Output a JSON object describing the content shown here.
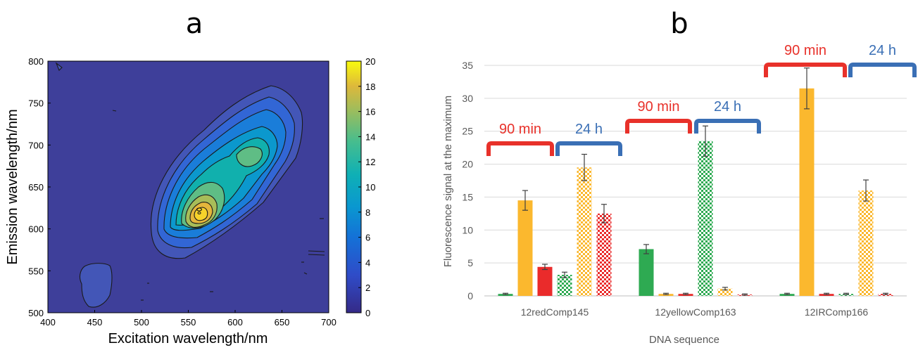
{
  "panel_a": {
    "letter": "a",
    "xlabel": "Excitation wavelength/nm",
    "ylabel": "Emission wavelength/nm",
    "xticks": [
      "400",
      "450",
      "500",
      "550",
      "600",
      "650",
      "700"
    ],
    "yticks": [
      "500",
      "550",
      "600",
      "650",
      "700",
      "750",
      "800"
    ],
    "colorbar_ticks": [
      "0",
      "2",
      "4",
      "6",
      "8",
      "10",
      "12",
      "14",
      "16",
      "18",
      "20"
    ]
  },
  "panel_b": {
    "letter": "b",
    "xlabel": "DNA sequence",
    "ylabel": "Fluorescence signal at the maximum",
    "yticks": [
      "0",
      "5",
      "10",
      "15",
      "20",
      "25",
      "30",
      "35"
    ],
    "labels": [
      {
        "text": "90 min",
        "color": "#e8312a"
      },
      {
        "text": "24 h",
        "color": "#3a6fb5"
      },
      {
        "text": "90 min",
        "color": "#e8312a"
      },
      {
        "text": "24 h",
        "color": "#3a6fb5"
      },
      {
        "text": "90 min",
        "color": "#e8312a"
      },
      {
        "text": "24 h",
        "color": "#3a6fb5"
      }
    ]
  },
  "chart_data": [
    {
      "type": "heatmap",
      "subtype": "filled-contour",
      "title": "a",
      "xlabel": "Excitation wavelength/nm",
      "ylabel": "Emission wavelength/nm",
      "xlim": [
        400,
        700
      ],
      "ylim": [
        500,
        800
      ],
      "colorbar": {
        "range": [
          0,
          20
        ],
        "ticks": [
          0,
          2,
          4,
          6,
          8,
          10,
          12,
          14,
          16,
          18,
          20
        ],
        "colormap": "parula"
      },
      "peaks": [
        {
          "x": 560,
          "y": 620,
          "value": 19
        },
        {
          "x": 610,
          "y": 680,
          "value": 13
        },
        {
          "x": 450,
          "y": 535,
          "value": 4
        }
      ]
    },
    {
      "type": "bar",
      "title": "b",
      "xlabel": "DNA sequence",
      "ylabel": "Fluorescence signal at the maximum",
      "ylim": [
        0,
        35
      ],
      "grid": true,
      "categories": [
        "12redComp145",
        "12yellowComp163",
        "12IRComp166"
      ],
      "series": [
        {
          "time": "90 min",
          "color": "#2eaa52",
          "pattern": "solid",
          "values": [
            0.3,
            7.1,
            0.3
          ],
          "errors": [
            0.1,
            0.7,
            0.1
          ]
        },
        {
          "time": "90 min",
          "color": "#fbb82e",
          "pattern": "solid",
          "values": [
            14.5,
            0.3,
            31.5
          ],
          "errors": [
            1.5,
            0.1,
            3.1
          ]
        },
        {
          "time": "90 min",
          "color": "#ea2b2b",
          "pattern": "solid",
          "values": [
            4.4,
            0.3,
            0.3
          ],
          "errors": [
            0.4,
            0.1,
            0.1
          ]
        },
        {
          "time": "24 h",
          "color": "#2eaa52",
          "pattern": "checker",
          "values": [
            3.2,
            23.5,
            0.3
          ],
          "errors": [
            0.4,
            2.3,
            0.1
          ]
        },
        {
          "time": "24 h",
          "color": "#fbb82e",
          "pattern": "checker",
          "values": [
            19.5,
            1.1,
            16.0
          ],
          "errors": [
            2.0,
            0.2,
            1.6
          ]
        },
        {
          "time": "24 h",
          "color": "#ea2b2b",
          "pattern": "checker",
          "values": [
            12.5,
            0.2,
            0.3
          ],
          "errors": [
            1.4,
            0.1,
            0.1
          ]
        }
      ]
    }
  ]
}
